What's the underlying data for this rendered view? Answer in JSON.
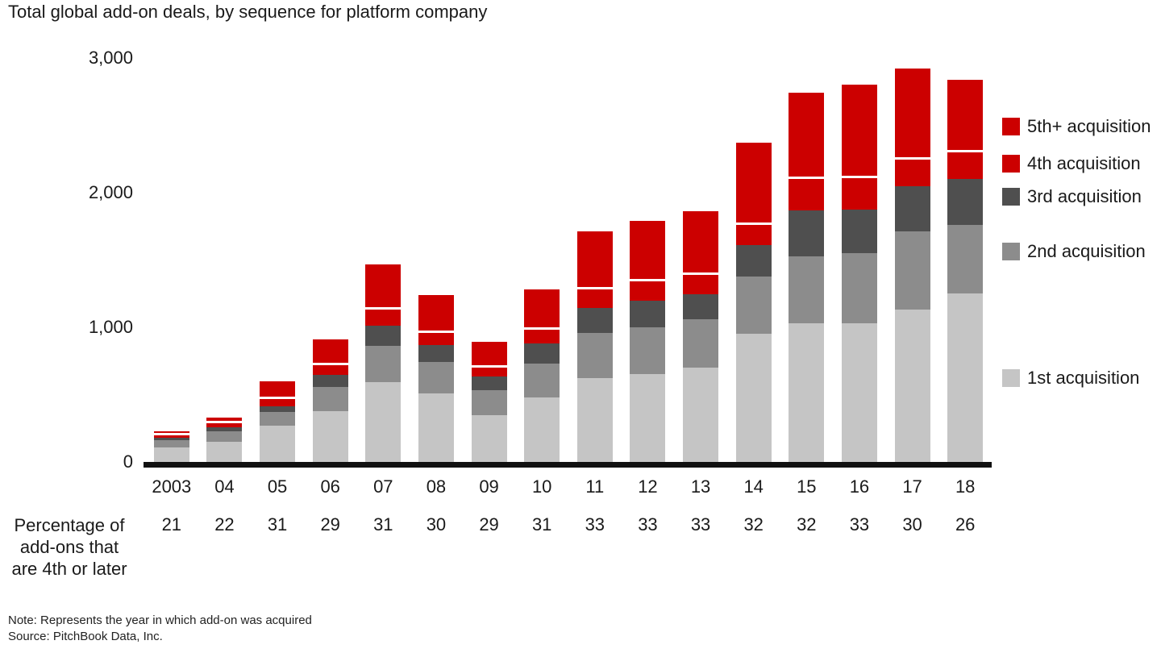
{
  "chart_data": {
    "type": "bar",
    "stacked": true,
    "title": "Total global add-on deals, by sequence for platform company",
    "categories": [
      "2003",
      "04",
      "05",
      "06",
      "07",
      "08",
      "09",
      "10",
      "11",
      "12",
      "13",
      "14",
      "15",
      "16",
      "17",
      "18"
    ],
    "series": [
      {
        "name": "1st acquisition",
        "color": "#c5c5c5",
        "values": [
          110,
          150,
          270,
          380,
          590,
          510,
          350,
          480,
          620,
          650,
          700,
          950,
          1030,
          1030,
          1130,
          1250
        ]
      },
      {
        "name": "2nd acquisition",
        "color": "#8c8c8c",
        "values": [
          50,
          75,
          100,
          175,
          270,
          230,
          185,
          250,
          340,
          350,
          360,
          430,
          500,
          520,
          580,
          510
        ]
      },
      {
        "name": "3rd acquisition",
        "color": "#4f4f4f",
        "values": [
          22,
          32,
          44,
          91,
          154,
          128,
          97,
          153,
          186,
          199,
          186,
          232,
          340,
          326,
          340,
          340
        ]
      },
      {
        "name": "4th acquisition",
        "color": "#cc0000",
        "values": [
          18,
          28,
          56,
          74,
          116,
          92,
          68,
          97,
          134,
          141,
          144,
          148,
          230,
          234,
          196,
          200
        ]
      },
      {
        "name": "5th+ acquisition",
        "color": "#cc0000",
        "values": [
          30,
          45,
          130,
          190,
          340,
          280,
          190,
          300,
          430,
          450,
          470,
          610,
          640,
          690,
          674,
          540
        ]
      }
    ],
    "totals": [
      230,
      330,
      600,
      910,
      1470,
      1240,
      890,
      1280,
      1710,
      1790,
      1860,
      2370,
      2740,
      2800,
      2920,
      2840
    ],
    "ylim": [
      0,
      3000
    ],
    "yticks": [
      {
        "value": 0,
        "label": "0"
      },
      {
        "value": 1000,
        "label": "1,000"
      },
      {
        "value": 2000,
        "label": "2,000"
      },
      {
        "value": 3000,
        "label": "3,000"
      }
    ],
    "legend": [
      "5th+ acquisition",
      "4th acquisition",
      "3rd acquisition",
      "2nd acquisition",
      "1st acquisition"
    ],
    "legend_position": "right",
    "grid": false
  },
  "pct_row": {
    "label_lines": [
      "Percentage of",
      "add-ons that",
      "are 4th or later"
    ],
    "values": [
      21,
      22,
      31,
      29,
      31,
      30,
      29,
      31,
      33,
      33,
      33,
      32,
      32,
      33,
      30,
      26
    ]
  },
  "footnote": {
    "note": "Note: Represents the year in which add-on was acquired",
    "source": "Source: PitchBook Data, Inc."
  }
}
